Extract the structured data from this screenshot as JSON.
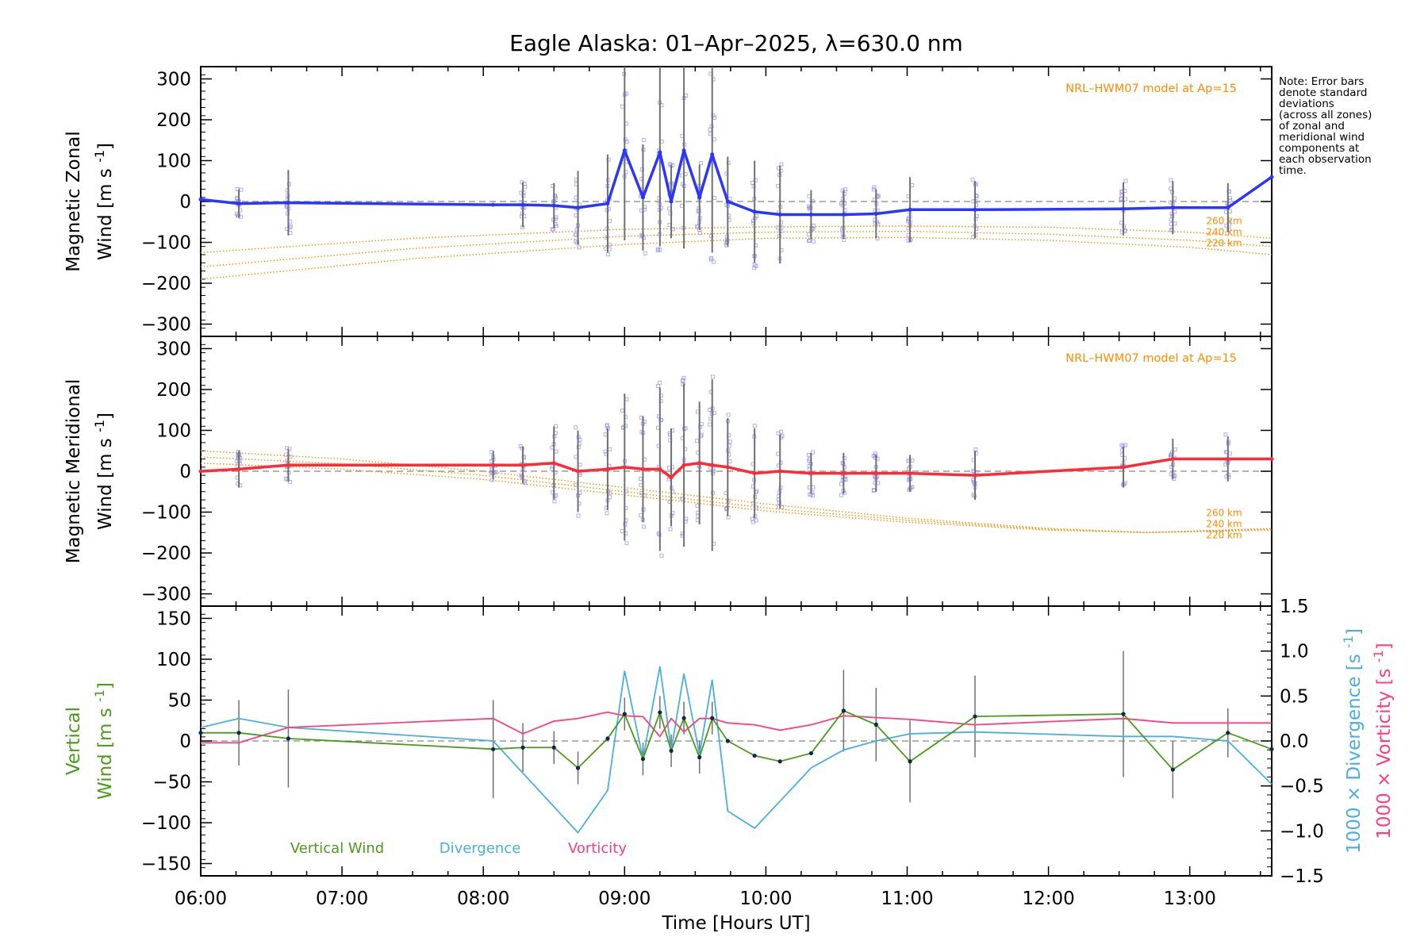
{
  "title": "Eagle Alaska: 01–Apr–2025, λ=630.0 nm",
  "note": "Note: Error bars\ndenote standard\ndeviations\n(across all zones)\nof zonal and\nmeridional wind\ncomponents at\neach observation\ntime.",
  "colors": {
    "zonal": "#2a36ff",
    "meridional": "#ff2a36",
    "model": "#ff8c00",
    "vertical": "#4c9a1a",
    "divergence": "#4aaee0",
    "vorticity": "#ff3d7f",
    "scatter": "#8a8ef0",
    "errorbar": "#707070",
    "zero": "#888888"
  },
  "chart_data": [
    {
      "type": "line",
      "panel": "zonal",
      "ylabel_line1": "Magnetic Zonal",
      "ylabel_line2": "Wind",
      "ylabel_units": "[m s",
      "ylabel_exp": "-1",
      "ylabel_close": "]",
      "xlim": [
        6.0,
        13.58
      ],
      "ylim": [
        -330,
        330
      ],
      "yticks": [
        300,
        200,
        100,
        0,
        -100,
        -200,
        -300
      ],
      "yticklabels": [
        "300",
        "200",
        "100",
        "0",
        "−100",
        "−200",
        "−300"
      ],
      "model_label": "NRL–HWM07 model at Ap=15",
      "series": [
        {
          "name": "Zonal wind",
          "x": [
            6.0,
            6.27,
            6.62,
            8.07,
            8.28,
            8.5,
            8.67,
            8.88,
            9.0,
            9.13,
            9.25,
            9.33,
            9.42,
            9.53,
            9.62,
            9.73,
            9.92,
            10.1,
            10.32,
            10.55,
            10.78,
            11.02,
            11.48,
            12.53,
            12.88,
            13.27,
            13.58
          ],
          "y": [
            5,
            -5,
            -3,
            -8,
            -8,
            -10,
            -15,
            -5,
            125,
            10,
            120,
            0,
            125,
            10,
            115,
            0,
            -25,
            -32,
            -32,
            -32,
            -30,
            -20,
            -20,
            -18,
            -15,
            -15,
            60
          ],
          "err": [
            0,
            35,
            80,
            0,
            55,
            55,
            90,
            120,
            220,
            130,
            230,
            90,
            240,
            80,
            240,
            110,
            125,
            120,
            60,
            60,
            60,
            80,
            70,
            65,
            65,
            60,
            0
          ]
        }
      ],
      "model_lines": [
        {
          "name": "260 km",
          "x": [
            6.0,
            7.5,
            9.0,
            10.0,
            11.0,
            12.0,
            13.0,
            13.58
          ],
          "y": [
            -125,
            -90,
            -68,
            -62,
            -60,
            -63,
            -75,
            -90
          ]
        },
        {
          "name": "240 km",
          "x": [
            6.0,
            7.5,
            9.0,
            10.0,
            11.0,
            12.0,
            13.0,
            13.58
          ],
          "y": [
            -160,
            -115,
            -85,
            -75,
            -73,
            -80,
            -95,
            -110
          ]
        },
        {
          "name": "220 km",
          "x": [
            6.0,
            7.5,
            9.0,
            10.0,
            11.0,
            12.0,
            13.0,
            13.58
          ],
          "y": [
            -190,
            -140,
            -105,
            -90,
            -88,
            -95,
            -112,
            -130
          ]
        }
      ],
      "model_labels": [
        "260 km",
        "240 km",
        "220 km"
      ]
    },
    {
      "type": "line",
      "panel": "meridional",
      "ylabel_line1": "Magnetic Meridional",
      "ylabel_line2": "Wind",
      "ylabel_units": "[m s",
      "ylabel_exp": "-1",
      "ylabel_close": "]",
      "xlim": [
        6.0,
        13.58
      ],
      "ylim": [
        -330,
        330
      ],
      "yticks": [
        300,
        200,
        100,
        0,
        -100,
        -200,
        -300
      ],
      "yticklabels": [
        "300",
        "200",
        "100",
        "0",
        "−100",
        "−200",
        "−300"
      ],
      "model_label": "NRL–HWM07 model at Ap=15",
      "series": [
        {
          "name": "Meridional wind",
          "x": [
            6.0,
            6.27,
            6.62,
            8.07,
            8.28,
            8.5,
            8.67,
            8.88,
            9.0,
            9.13,
            9.25,
            9.33,
            9.42,
            9.53,
            9.62,
            9.73,
            9.92,
            10.1,
            10.32,
            10.55,
            10.78,
            11.02,
            11.48,
            12.53,
            12.88,
            13.27,
            13.58
          ],
          "y": [
            0,
            5,
            15,
            15,
            15,
            20,
            0,
            5,
            10,
            5,
            5,
            -15,
            15,
            20,
            15,
            10,
            -5,
            0,
            -5,
            -5,
            -5,
            -5,
            -10,
            10,
            30,
            30,
            30
          ],
          "err": [
            0,
            45,
            40,
            35,
            45,
            90,
            100,
            100,
            180,
            130,
            200,
            120,
            200,
            150,
            210,
            120,
            110,
            90,
            50,
            50,
            45,
            45,
            60,
            50,
            50,
            55,
            0
          ]
        }
      ],
      "model_lines": [
        {
          "name": "260 km",
          "x": [
            6.0,
            7.0,
            8.0,
            9.0,
            10.0,
            11.0,
            12.0,
            12.7,
            13.58
          ],
          "y": [
            50,
            30,
            0,
            -40,
            -80,
            -115,
            -140,
            -150,
            -140
          ]
        },
        {
          "name": "240 km",
          "x": [
            6.0,
            7.0,
            8.0,
            9.0,
            10.0,
            11.0,
            12.0,
            12.7,
            13.58
          ],
          "y": [
            35,
            18,
            -10,
            -50,
            -90,
            -120,
            -142,
            -150,
            -142
          ]
        },
        {
          "name": "220 km",
          "x": [
            6.0,
            7.0,
            8.0,
            9.0,
            10.0,
            11.0,
            12.0,
            12.7,
            13.58
          ],
          "y": [
            20,
            5,
            -20,
            -58,
            -97,
            -125,
            -144,
            -150,
            -144
          ]
        }
      ],
      "model_labels": [
        "260 km",
        "240 km",
        "220 km"
      ]
    },
    {
      "type": "line",
      "panel": "vertical",
      "ylabel_line1": "Vertical",
      "ylabel_line2": "Wind",
      "ylabel_units": "[m s",
      "ylabel_exp": "-1",
      "ylabel_close": "]",
      "y2label": "1000 × Divergence",
      "y2label_units": "[s",
      "y2label_exp": "-1",
      "y2label_close": "]",
      "y3label": "1000 × Vorticity",
      "y3label_units": "[s",
      "y3label_exp": "-1",
      "y3label_close": "]",
      "xlim": [
        6.0,
        13.58
      ],
      "ylim": [
        -165,
        165
      ],
      "y2lim": [
        -1.5,
        1.5
      ],
      "yticks": [
        150,
        100,
        50,
        0,
        -50,
        -100,
        -150
      ],
      "yticklabels": [
        "150",
        "100",
        "50",
        "0",
        "−50",
        "−100",
        "−150"
      ],
      "y2ticks": [
        1.5,
        1.0,
        0.5,
        0.0,
        -0.5,
        -1.0,
        -1.5
      ],
      "y2ticklabels": [
        "1.5",
        "1.0",
        "0.5",
        "0.0",
        "−0.5",
        "−1.0",
        "−1.5"
      ],
      "xticks": [
        6,
        7,
        8,
        9,
        10,
        11,
        12,
        13
      ],
      "xticklabels": [
        "06:00",
        "07:00",
        "08:00",
        "09:00",
        "10:00",
        "11:00",
        "12:00",
        "13:00"
      ],
      "xlabel": "Time [Hours UT]",
      "legend": [
        "Vertical Wind",
        "Divergence",
        "Vorticity"
      ],
      "series": [
        {
          "name": "Vertical Wind",
          "axis": "left",
          "x": [
            6.0,
            6.27,
            6.62,
            8.07,
            8.28,
            8.5,
            8.67,
            8.88,
            9.0,
            9.13,
            9.25,
            9.33,
            9.42,
            9.53,
            9.62,
            9.73,
            9.92,
            10.1,
            10.32,
            10.55,
            10.78,
            11.02,
            11.48,
            12.53,
            12.88,
            13.27,
            13.58
          ],
          "y": [
            10,
            10,
            3,
            -10,
            -8,
            -8,
            -33,
            3,
            33,
            -22,
            35,
            -12,
            28,
            -20,
            28,
            0,
            -18,
            -25,
            -15,
            37,
            20,
            -25,
            30,
            33,
            -35,
            10,
            -10
          ],
          "err": [
            0,
            40,
            60,
            60,
            30,
            20,
            20,
            0,
            20,
            20,
            20,
            20,
            20,
            20,
            20,
            0,
            0,
            0,
            0,
            50,
            45,
            50,
            50,
            77,
            35,
            30,
            0
          ]
        },
        {
          "name": "Divergence",
          "axis": "right",
          "x": [
            6.0,
            6.27,
            6.62,
            8.07,
            8.67,
            8.88,
            9.0,
            9.13,
            9.25,
            9.33,
            9.42,
            9.53,
            9.62,
            9.73,
            9.92,
            10.1,
            10.32,
            10.55,
            10.78,
            11.02,
            11.48,
            12.53,
            12.88,
            13.27,
            13.58
          ],
          "y": [
            0.15,
            0.25,
            0.15,
            0.0,
            -1.02,
            -0.55,
            0.78,
            -0.2,
            0.83,
            -0.1,
            0.75,
            -0.15,
            0.68,
            -0.78,
            -0.97,
            -0.67,
            -0.3,
            -0.1,
            0.0,
            0.08,
            0.1,
            0.05,
            0.05,
            0.0,
            -0.48
          ]
        },
        {
          "name": "Vorticity",
          "axis": "right",
          "x": [
            6.0,
            6.27,
            6.62,
            8.07,
            8.28,
            8.5,
            8.67,
            8.88,
            9.0,
            9.13,
            9.25,
            9.33,
            9.42,
            9.53,
            9.62,
            9.73,
            9.92,
            10.1,
            10.32,
            10.55,
            10.78,
            11.02,
            11.48,
            12.53,
            12.88,
            13.27,
            13.58
          ],
          "y": [
            -0.02,
            -0.02,
            0.15,
            0.25,
            0.08,
            0.22,
            0.25,
            0.32,
            0.28,
            0.27,
            0.05,
            0.25,
            0.1,
            0.25,
            0.25,
            0.2,
            0.18,
            0.12,
            0.18,
            0.28,
            0.26,
            0.24,
            0.18,
            0.25,
            0.2,
            0.2,
            0.2
          ]
        }
      ]
    }
  ]
}
